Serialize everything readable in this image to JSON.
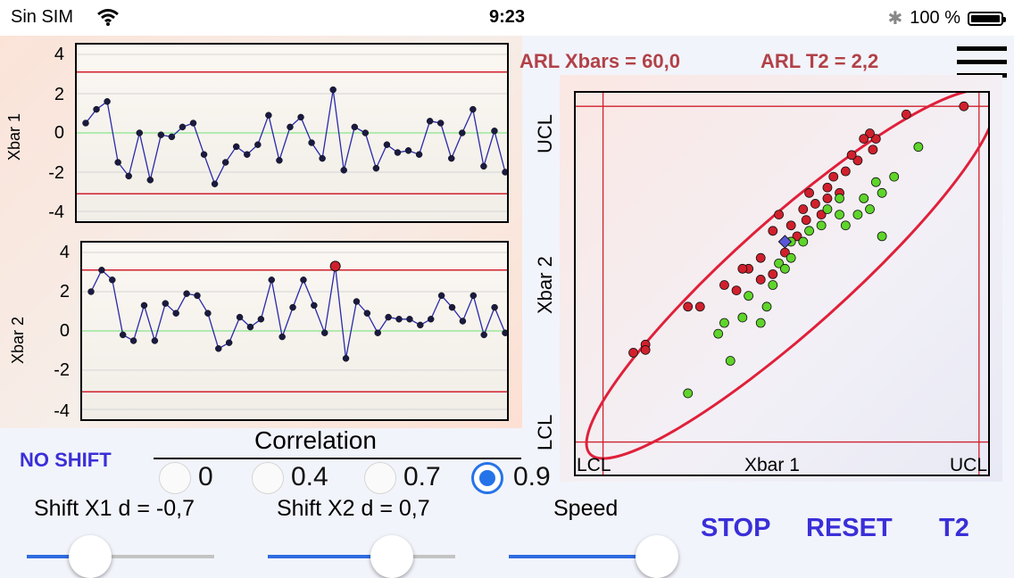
{
  "status_bar": {
    "carrier": "Sin SIM",
    "time": "9:23",
    "battery": "100 %"
  },
  "arl": {
    "xbars": "ARL Xbars = 60,0",
    "t2": "ARL T2 = 2,2"
  },
  "chart_data": [
    {
      "type": "line",
      "ylabel": "Xbar 1",
      "yticks": [
        "4",
        "2",
        "0",
        "-2",
        "-4"
      ],
      "ylim": [
        -4.5,
        4.5
      ],
      "limits": {
        "ucl": 3.1,
        "lcl": -3.1,
        "center": 0
      },
      "values": [
        0.5,
        1.2,
        1.6,
        -1.5,
        -2.2,
        0.0,
        -2.4,
        -0.1,
        -0.2,
        0.3,
        0.5,
        -1.1,
        -2.6,
        -1.5,
        -0.7,
        -1.1,
        -0.6,
        0.9,
        -1.4,
        0.3,
        0.8,
        -0.5,
        -1.3,
        2.2,
        -1.9,
        0.3,
        0.0,
        -1.8,
        -0.6,
        -1.0,
        -0.9,
        -1.1,
        0.6,
        0.5,
        -1.3,
        0.0,
        1.2,
        -1.7,
        0.1,
        -2.0
      ],
      "red_points": []
    },
    {
      "type": "line",
      "ylabel": "Xbar 2",
      "yticks": [
        "4",
        "2",
        "0",
        "-2",
        "-4"
      ],
      "ylim": [
        -4.5,
        4.5
      ],
      "limits": {
        "ucl": 3.1,
        "lcl": -3.1,
        "center": 0
      },
      "values": [
        2.0,
        3.1,
        2.6,
        -0.2,
        -0.5,
        1.3,
        -0.5,
        1.4,
        0.9,
        1.9,
        1.8,
        0.9,
        -0.9,
        -0.6,
        0.7,
        0.2,
        0.6,
        2.6,
        -0.3,
        1.2,
        2.6,
        1.3,
        -0.1,
        3.3,
        -1.4,
        1.5,
        0.9,
        -0.1,
        0.7,
        0.6,
        0.6,
        0.3,
        0.6,
        1.8,
        1.2,
        0.5,
        1.8,
        -0.2,
        1.2,
        -0.1
      ],
      "red_points": [
        23
      ]
    },
    {
      "type": "scatter",
      "xlabel": "Xbar 1",
      "ylabel": "Xbar 2",
      "x_limits": {
        "lcl_label": "LCL",
        "ucl_label": "UCL"
      },
      "y_limits": {
        "lcl_label": "LCL",
        "ucl_label": "UCL"
      },
      "xlim": [
        -3.55,
        3.25
      ],
      "ylim": [
        -3.7,
        3.35
      ],
      "limits": {
        "lcl": -3.1,
        "ucl": 3.1
      },
      "series": [
        {
          "color": "#d0202c",
          "points": [
            [
              2.85,
              3.1
            ],
            [
              1.9,
              2.95
            ],
            [
              1.4,
              2.5
            ],
            [
              1.3,
              2.6
            ],
            [
              1.2,
              2.5
            ],
            [
              1.35,
              2.3
            ],
            [
              1.1,
              2.1
            ],
            [
              1.0,
              2.2
            ],
            [
              0.9,
              1.9
            ],
            [
              0.7,
              1.8
            ],
            [
              0.6,
              1.6
            ],
            [
              0.3,
              1.5
            ],
            [
              0.6,
              1.4
            ],
            [
              0.4,
              1.3
            ],
            [
              0.2,
              1.2
            ],
            [
              0.25,
              1.0
            ],
            [
              0.0,
              0.9
            ],
            [
              -0.2,
              1.1
            ],
            [
              -0.3,
              0.8
            ],
            [
              -0.5,
              0.3
            ],
            [
              -0.7,
              0.1
            ],
            [
              -0.8,
              0.1
            ],
            [
              -0.5,
              -0.1
            ],
            [
              -0.9,
              -0.3
            ],
            [
              -1.1,
              -0.2
            ],
            [
              -1.5,
              -0.6
            ],
            [
              -1.7,
              -0.6
            ],
            [
              -2.4,
              -1.3
            ],
            [
              -2.6,
              -1.45
            ],
            [
              -2.4,
              -1.4
            ],
            [
              -0.3,
              0.0
            ],
            [
              -0.1,
              0.4
            ],
            [
              0.1,
              0.7
            ],
            [
              0.8,
              1.5
            ],
            [
              0.5,
              1.1
            ]
          ]
        },
        {
          "color": "#5fd42a",
          "points": [
            [
              2.1,
              2.35
            ],
            [
              1.7,
              1.8
            ],
            [
              1.4,
              1.7
            ],
            [
              1.5,
              1.5
            ],
            [
              1.3,
              1.2
            ],
            [
              1.2,
              1.4
            ],
            [
              1.1,
              1.1
            ],
            [
              0.9,
              0.9
            ],
            [
              0.8,
              1.1
            ],
            [
              0.6,
              1.2
            ],
            [
              0.5,
              0.9
            ],
            [
              0.3,
              0.8
            ],
            [
              0.2,
              0.6
            ],
            [
              0.0,
              0.3
            ],
            [
              -0.2,
              0.2
            ],
            [
              -0.3,
              -0.2
            ],
            [
              -0.4,
              -0.6
            ],
            [
              -0.7,
              -0.4
            ],
            [
              -0.8,
              -0.8
            ],
            [
              -1.1,
              -0.9
            ],
            [
              -1.2,
              -1.1
            ],
            [
              -1.0,
              -1.6
            ],
            [
              -1.7,
              -2.2
            ],
            [
              -0.5,
              -0.9
            ],
            [
              -0.1,
              0.1
            ],
            [
              1.5,
              0.7
            ],
            [
              0.8,
              1.4
            ],
            [
              0.0,
              0.6
            ]
          ]
        },
        {
          "color": "#5a56d8",
          "marker": "diamond",
          "points": [
            [
              -0.1,
              0.6
            ]
          ]
        }
      ]
    }
  ],
  "controls": {
    "no_shift": "NO SHIFT",
    "correlation_title": "Correlation",
    "correlation_options": [
      "0",
      "0.4",
      "0.7",
      "0.9"
    ],
    "correlation_selected": "0.9",
    "shift_x1": "Shift X1 d = -0,7",
    "shift_x2": "Shift X2 d = 0,7",
    "speed": "Speed",
    "shift_x1_level": 0.34,
    "shift_x2_level": 0.66,
    "speed_level": 0.92,
    "stop": "STOP",
    "reset": "RESET",
    "t2": "T2"
  }
}
